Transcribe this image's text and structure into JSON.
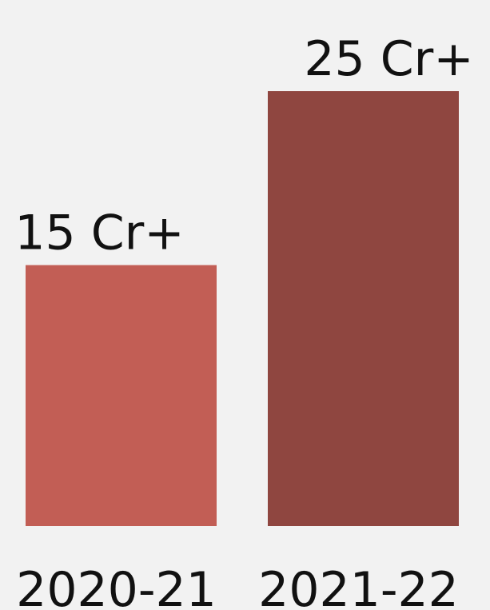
{
  "chart_data": {
    "type": "bar",
    "categories": [
      "2020-21",
      "2021-22"
    ],
    "values": [
      15,
      25
    ],
    "data_labels": [
      "15 Cr+",
      "25 Cr+"
    ],
    "colors": [
      "#c25e55",
      "#8f4640"
    ],
    "background": "#f2f2f2",
    "title": "",
    "xlabel": "",
    "ylabel": "",
    "ylim": [
      0,
      25
    ],
    "grid": false,
    "legend": "none"
  }
}
